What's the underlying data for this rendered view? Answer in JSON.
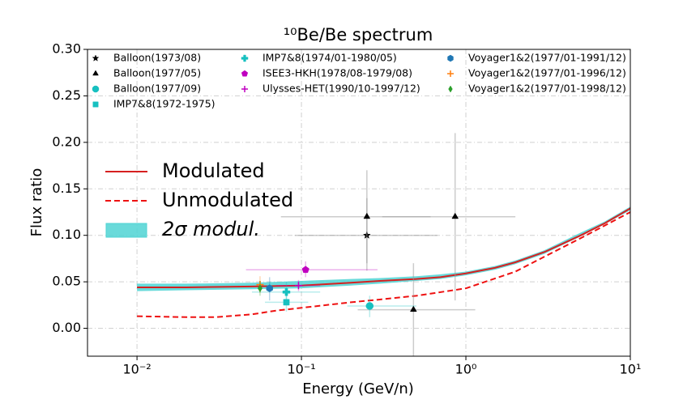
{
  "chart_data": {
    "type": "scatter",
    "title": "¹⁰Be/Be spectrum",
    "x_label": "Energy (GeV/n)",
    "y_label": "Flux ratio",
    "xscale": "log",
    "xlim": [
      0.005,
      10
    ],
    "ylim": [
      -0.03,
      0.3
    ],
    "xticks": [
      {
        "value": 0.01,
        "label": "10⁻²"
      },
      {
        "value": 0.1,
        "label": "10⁻¹"
      },
      {
        "value": 1,
        "label": "10⁰"
      },
      {
        "value": 10,
        "label": "10¹"
      }
    ],
    "yticks": [
      {
        "value": 0,
        "label": "0.00"
      },
      {
        "value": 0.05,
        "label": "0.05"
      },
      {
        "value": 0.1,
        "label": "0.10"
      },
      {
        "value": 0.15,
        "label": "0.15"
      },
      {
        "value": 0.2,
        "label": "0.20"
      },
      {
        "value": 0.25,
        "label": "0.25"
      },
      {
        "value": 0.3,
        "label": "0.30"
      }
    ],
    "grid": true,
    "legend_columns": 3,
    "series": [
      {
        "name": "Balloon(1973/08)",
        "color": "#000000",
        "marker": "star",
        "points": [
          {
            "x": 0.25,
            "y": 0.1,
            "x_range": [
              0.091,
              0.67
            ],
            "y_range": [
              0.062,
              0.14
            ]
          }
        ]
      },
      {
        "name": "Balloon(1977/05)",
        "color": "#000000",
        "marker": "triangle",
        "points": [
          {
            "x": 0.25,
            "y": 0.12,
            "x_range": [
              0.075,
              0.61
            ],
            "y_range": [
              0.07,
              0.17
            ]
          },
          {
            "x": 0.86,
            "y": 0.12,
            "x_range": [
              0.31,
              2.0
            ],
            "y_range": [
              0.03,
              0.21
            ]
          },
          {
            "x": 0.48,
            "y": 0.02,
            "x_range": [
              0.22,
              1.14
            ],
            "y_range": [
              -0.03,
              0.07
            ]
          }
        ]
      },
      {
        "name": "Balloon(1977/09)",
        "color": "#17c0c0",
        "marker": "circle",
        "points": [
          {
            "x": 0.26,
            "y": 0.024,
            "x_range": [
              0.19,
              0.5
            ],
            "y_range": [
              0.012,
              0.035
            ]
          }
        ]
      },
      {
        "name": "IMP7&8(1972-1975)",
        "color": "#17c0c0",
        "marker": "square",
        "points": [
          {
            "x": 0.081,
            "y": 0.028,
            "x_range": [
              0.06,
              0.11
            ],
            "y_range": [
              0.018,
              0.038
            ]
          }
        ]
      },
      {
        "name": "IMP7&8(1974/01-1980/05)",
        "color": "#17c0c0",
        "marker": "plus_filled",
        "points": [
          {
            "x": 0.081,
            "y": 0.039,
            "x_range": [
              0.05,
              0.13
            ],
            "y_range": [
              0.03,
              0.05
            ]
          }
        ]
      },
      {
        "name": "ISEE3-HKH(1978/08-1979/08)",
        "color": "#c000c0",
        "marker": "pentagon",
        "points": [
          {
            "x": 0.106,
            "y": 0.063,
            "x_range": [
              0.046,
              0.29
            ],
            "y_range": [
              0.055,
              0.072
            ]
          }
        ]
      },
      {
        "name": "Ulysses-HET(1990/10-1997/12)",
        "color": "#c000c0",
        "marker": "plus_thin",
        "points": [
          {
            "x": 0.096,
            "y": 0.046,
            "x_range": [
              0.07,
              0.13
            ],
            "y_range": [
              0.04,
              0.052
            ]
          }
        ]
      },
      {
        "name": "Voyager1&2(1977/01-1991/12)",
        "color": "#1f77b4",
        "marker": "hexagon",
        "points": [
          {
            "x": 0.064,
            "y": 0.043,
            "y_range": [
              0.03,
              0.055
            ]
          }
        ]
      },
      {
        "name": "Voyager1&2(1977/01-1996/12)",
        "color": "#ff7f0e",
        "marker": "plus_thin",
        "points": [
          {
            "x": 0.056,
            "y": 0.047,
            "y_range": [
              0.038,
              0.056
            ]
          }
        ]
      },
      {
        "name": "Voyager1&2(1977/01-1998/12)",
        "color": "#2ca02c",
        "marker": "diamond",
        "points": [
          {
            "x": 0.056,
            "y": 0.043,
            "y_range": [
              0.035,
              0.051
            ]
          }
        ]
      }
    ],
    "curves": [
      {
        "name": "Modulated",
        "color": "#d62020",
        "style": "solid",
        "x": [
          0.01,
          0.02,
          0.05,
          0.1,
          0.2,
          0.3,
          0.5,
          0.7,
          1,
          1.5,
          2,
          3,
          5,
          7,
          10
        ],
        "y": [
          0.044,
          0.044,
          0.045,
          0.046,
          0.049,
          0.051,
          0.053,
          0.055,
          0.059,
          0.065,
          0.071,
          0.082,
          0.1,
          0.113,
          0.129
        ]
      },
      {
        "name": "Unmodulated",
        "color": "#ee1111",
        "style": "dashed",
        "x": [
          0.01,
          0.02,
          0.03,
          0.05,
          0.07,
          0.1,
          0.2,
          0.3,
          0.5,
          1,
          2,
          3,
          5,
          10
        ],
        "y": [
          0.013,
          0.012,
          0.012,
          0.015,
          0.019,
          0.022,
          0.028,
          0.031,
          0.035,
          0.043,
          0.061,
          0.077,
          0.097,
          0.125
        ]
      }
    ],
    "band": {
      "name": "2σ modul.",
      "color": "#4fd3d3",
      "x": [
        0.01,
        0.02,
        0.05,
        0.1,
        0.2,
        0.3,
        0.5,
        0.7,
        1,
        1.5,
        2,
        3,
        5,
        7,
        10
      ],
      "low": [
        0.04,
        0.041,
        0.042,
        0.043,
        0.046,
        0.048,
        0.051,
        0.053,
        0.057,
        0.063,
        0.069,
        0.08,
        0.099,
        0.112,
        0.127
      ],
      "high": [
        0.048,
        0.048,
        0.049,
        0.051,
        0.053,
        0.054,
        0.056,
        0.058,
        0.061,
        0.067,
        0.073,
        0.084,
        0.103,
        0.115,
        0.131
      ]
    }
  }
}
